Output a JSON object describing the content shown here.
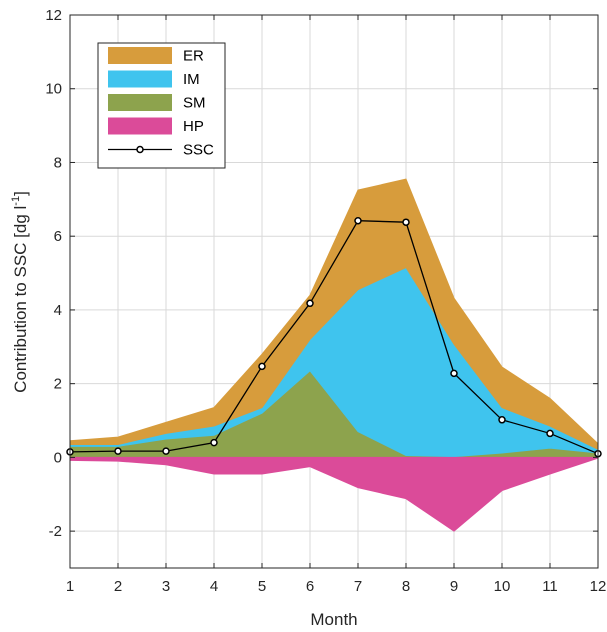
{
  "chart_data": {
    "type": "area",
    "x": [
      1,
      2,
      3,
      4,
      5,
      6,
      7,
      8,
      9,
      10,
      11,
      12
    ],
    "xlabel": "Month",
    "ylabel_main": "Contribution to SSC [dg l",
    "ylabel_sup": "-1",
    "ylabel_close": "]",
    "xlim": [
      1,
      12
    ],
    "ylim": [
      -3,
      12
    ],
    "xticks": [
      1,
      2,
      3,
      4,
      5,
      6,
      7,
      8,
      9,
      10,
      11,
      12
    ],
    "yticks": [
      -2,
      0,
      2,
      4,
      6,
      8,
      10,
      12
    ],
    "grid": true,
    "legend_position": "top-left",
    "stacked_positive_series": [
      {
        "name": "SM",
        "color": "#8da34d",
        "values": [
          0.3,
          0.3,
          0.5,
          0.6,
          1.2,
          2.35,
          0.7,
          0.05,
          0.02,
          0.12,
          0.25,
          0.12
        ]
      },
      {
        "name": "IM",
        "color": "#3fc4ee",
        "values": [
          0.05,
          0.05,
          0.15,
          0.25,
          0.15,
          0.85,
          3.85,
          5.1,
          3.05,
          1.23,
          0.6,
          0.1
        ]
      },
      {
        "name": "ER",
        "color": "#d79c3c",
        "values": [
          0.1,
          0.2,
          0.3,
          0.5,
          1.45,
          1.2,
          2.7,
          2.4,
          1.25,
          1.1,
          0.75,
          0.15
        ]
      }
    ],
    "negative_series": {
      "name": "HP",
      "color": "#db4b99",
      "values": [
        -0.08,
        -0.1,
        -0.2,
        -0.45,
        -0.45,
        -0.25,
        -0.82,
        -1.12,
        -2.0,
        -0.9,
        -0.45,
        -0.02
      ]
    },
    "line_series": {
      "name": "SSC",
      "color": "#000000",
      "values": [
        0.15,
        0.17,
        0.17,
        0.4,
        2.47,
        4.18,
        6.42,
        6.38,
        2.28,
        1.02,
        0.65,
        0.1
      ]
    },
    "legend": [
      {
        "name": "ER",
        "color": "#d79c3c",
        "kind": "patch"
      },
      {
        "name": "IM",
        "color": "#3fc4ee",
        "kind": "patch"
      },
      {
        "name": "SM",
        "color": "#8da34d",
        "kind": "patch"
      },
      {
        "name": "HP",
        "color": "#db4b99",
        "kind": "patch"
      },
      {
        "name": "SSC",
        "color": "#000000",
        "kind": "line"
      }
    ]
  }
}
